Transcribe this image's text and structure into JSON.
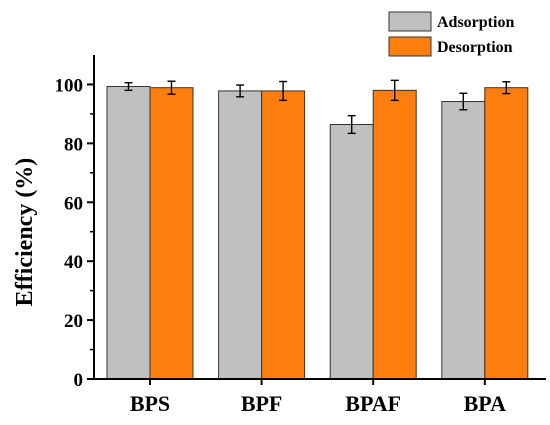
{
  "chart_data": {
    "type": "bar",
    "categories": [
      "BPS",
      "BPF",
      "BPAF",
      "BPA"
    ],
    "series": [
      {
        "name": "Adsorption",
        "color": "#c0c0c0",
        "values": [
          99.3,
          97.8,
          86.4,
          94.2
        ],
        "errors": [
          1.3,
          2.0,
          3.0,
          2.8
        ]
      },
      {
        "name": "Desorption",
        "color": "#ff7f0e",
        "values": [
          98.9,
          97.8,
          98.0,
          98.9
        ],
        "errors": [
          2.2,
          3.2,
          3.4,
          2.0
        ]
      }
    ],
    "title": "",
    "xlabel": "",
    "ylabel": "Efficiency (%)",
    "ylim": [
      0,
      110
    ],
    "yticks": [
      0,
      20,
      40,
      60,
      80,
      100
    ],
    "grid": false,
    "legend_position": "top-right"
  }
}
